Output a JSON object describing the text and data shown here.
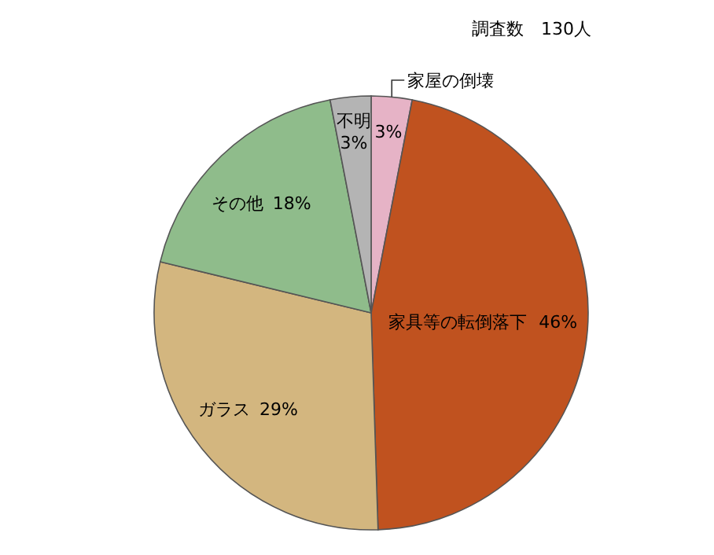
{
  "chart_data": {
    "type": "pie",
    "categories": [
      "家屋の倒壊",
      "家具等の転倒落下",
      "ガラス",
      "その他",
      "不明"
    ],
    "values": [
      3,
      46,
      29,
      18,
      3
    ],
    "colors": [
      "#e6b3c6",
      "#c0521f",
      "#d3b67f",
      "#8fbc8b",
      "#b4b4b4"
    ],
    "value_labels": [
      "3%",
      "46%",
      "29%",
      "18%",
      "3%"
    ],
    "annotations": [
      "調査数　130人"
    ]
  }
}
